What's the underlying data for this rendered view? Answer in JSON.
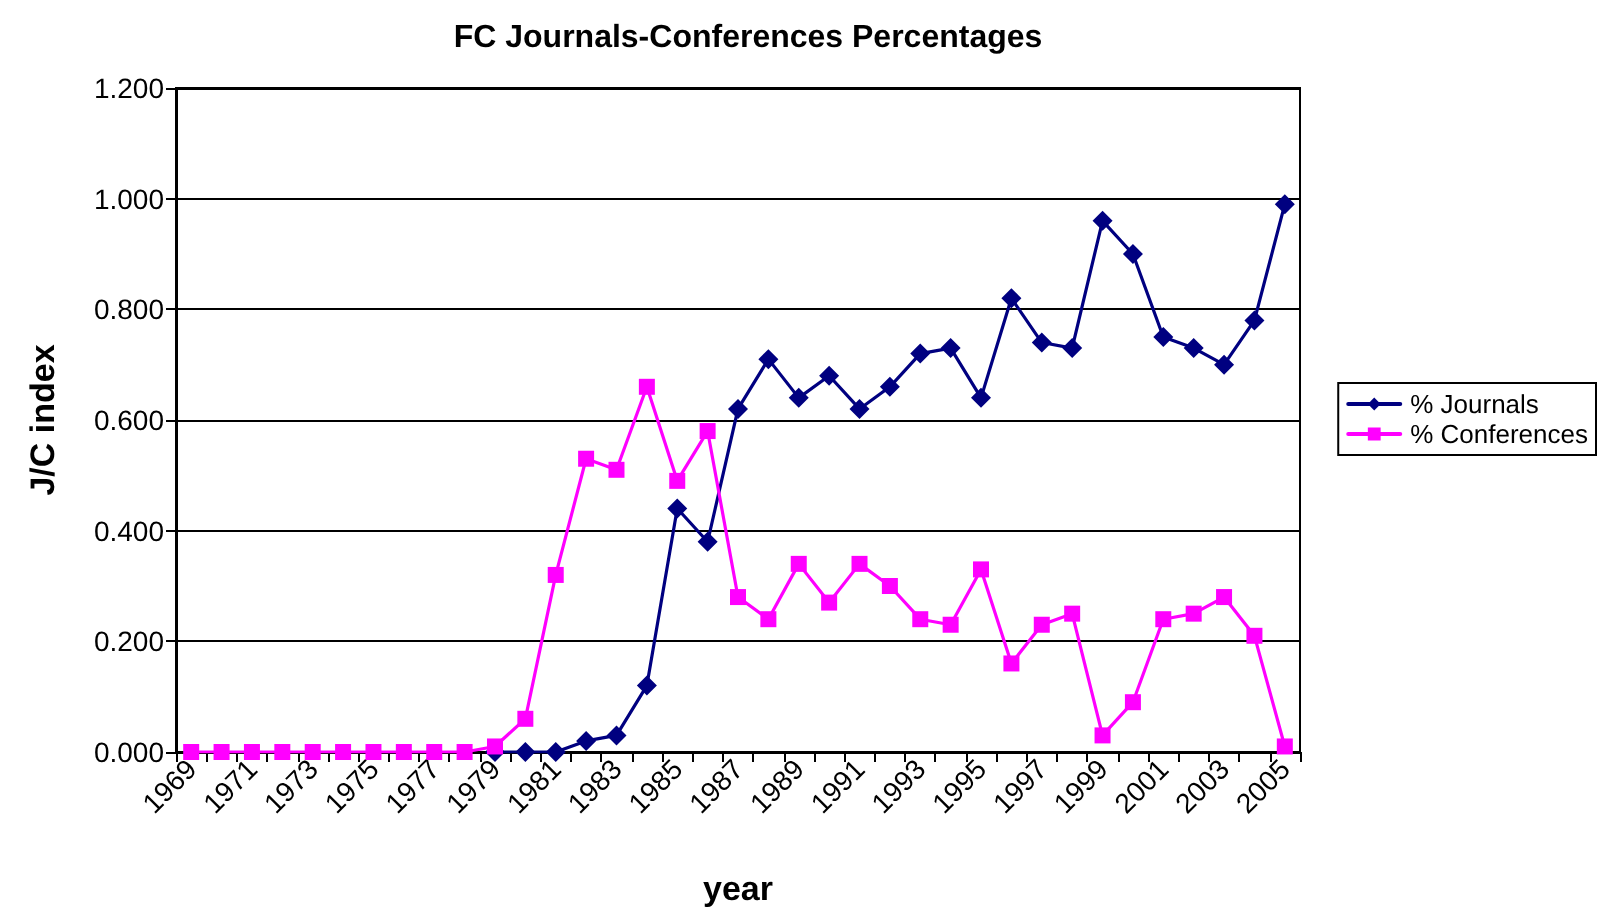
{
  "chart_data": {
    "type": "line",
    "title": "FC Journals-Conferences Percentages",
    "xlabel": "year",
    "ylabel": "J/C index",
    "categories": [
      "1969",
      null,
      "1971",
      null,
      "1973",
      null,
      "1975",
      null,
      "1977",
      null,
      "1979",
      null,
      "1981",
      null,
      "1983",
      null,
      "1985",
      null,
      "1987",
      null,
      "1989",
      null,
      "1991",
      null,
      "1993",
      null,
      "1995",
      null,
      "1997",
      null,
      "1999",
      null,
      "2001",
      null,
      "2003",
      null,
      "2005"
    ],
    "series": [
      {
        "name": "% Journals",
        "color": "#000080",
        "marker": "diamond",
        "values": [
          null,
          null,
          null,
          null,
          null,
          null,
          null,
          null,
          null,
          null,
          0,
          0,
          0,
          0.02,
          0.03,
          0.12,
          0.44,
          0.38,
          0.62,
          0.71,
          0.64,
          0.68,
          0.62,
          0.66,
          0.72,
          0.73,
          0.64,
          0.82,
          0.74,
          0.73,
          0.96,
          0.9,
          0.75,
          0.73,
          0.7,
          0.78,
          0.99
        ]
      },
      {
        "name": "% Conferences",
        "color": "#ff00ff",
        "marker": "square",
        "values": [
          0,
          0,
          0,
          0,
          0,
          0,
          0,
          0,
          0,
          0,
          0.01,
          0.06,
          0.32,
          0.53,
          0.51,
          0.66,
          0.49,
          0.58,
          0.28,
          0.24,
          0.34,
          0.27,
          0.34,
          0.3,
          0.24,
          0.23,
          0.33,
          0.16,
          0.23,
          0.25,
          0.03,
          0.09,
          0.24,
          0.25,
          0.28,
          0.21,
          0.01
        ]
      }
    ],
    "ylim": [
      0,
      1.2
    ],
    "yticks": [
      {
        "value": 0,
        "label": "0.000"
      },
      {
        "value": 0.2,
        "label": "0.200"
      },
      {
        "value": 0.4,
        "label": "0.400"
      },
      {
        "value": 0.6,
        "label": "0.600"
      },
      {
        "value": 0.8,
        "label": "0.800"
      },
      {
        "value": 1,
        "label": "1.000"
      },
      {
        "value": 1.2,
        "label": "1.200"
      }
    ],
    "grid": "y",
    "legend": "right",
    "line_style": "solid"
  }
}
